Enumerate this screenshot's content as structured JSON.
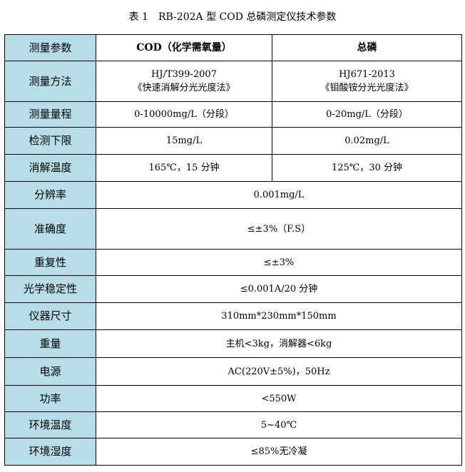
{
  "caption": "表 1　RB-202A 型 COD 总磷测定仪技术参数",
  "header": {
    "label": "测量参数",
    "cod": "COD（化学需氧量）",
    "tp": "总磷"
  },
  "split_rows": [
    {
      "label": "测量方法",
      "cod": [
        "HJ/T399-2007",
        "《快速消解分光光度法》"
      ],
      "tp": [
        "HJ671-2013",
        "《钼酸铵分光光度法》"
      ]
    },
    {
      "label": "测量量程",
      "cod": [
        "0-10000mg/L（分段）"
      ],
      "tp": [
        "0-20mg/L（分段）"
      ]
    },
    {
      "label": "检测下限",
      "cod": [
        "15mg/L"
      ],
      "tp": [
        "0.02mg/L"
      ]
    },
    {
      "label": "消解温度",
      "cod": [
        "165℃，15 分钟"
      ],
      "tp": [
        "125℃，30 分钟"
      ]
    }
  ],
  "merged_rows": [
    {
      "label": "分辨率",
      "value": "0.001mg/L"
    },
    {
      "label": "准确度",
      "value": "≤±3%（F.S）"
    },
    {
      "label": "重复性",
      "value": "≤±3%"
    },
    {
      "label": "光学稳定性",
      "value": "≤0.001A/20 分钟"
    },
    {
      "label": "仪器尺寸",
      "value": "310mm*230mm*150mm"
    },
    {
      "label": "重量",
      "value": "主机<3kg，消解器<6kg"
    },
    {
      "label": "电源",
      "value": "AC(220V±5%)，50Hz"
    },
    {
      "label": "功率",
      "value": "<550W"
    },
    {
      "label": "环境温度",
      "value": "5~40℃"
    },
    {
      "label": "环境湿度",
      "value": "≤85%无冷凝"
    }
  ],
  "colors": {
    "label_bg": "#b7dde8",
    "border": "#000000"
  }
}
